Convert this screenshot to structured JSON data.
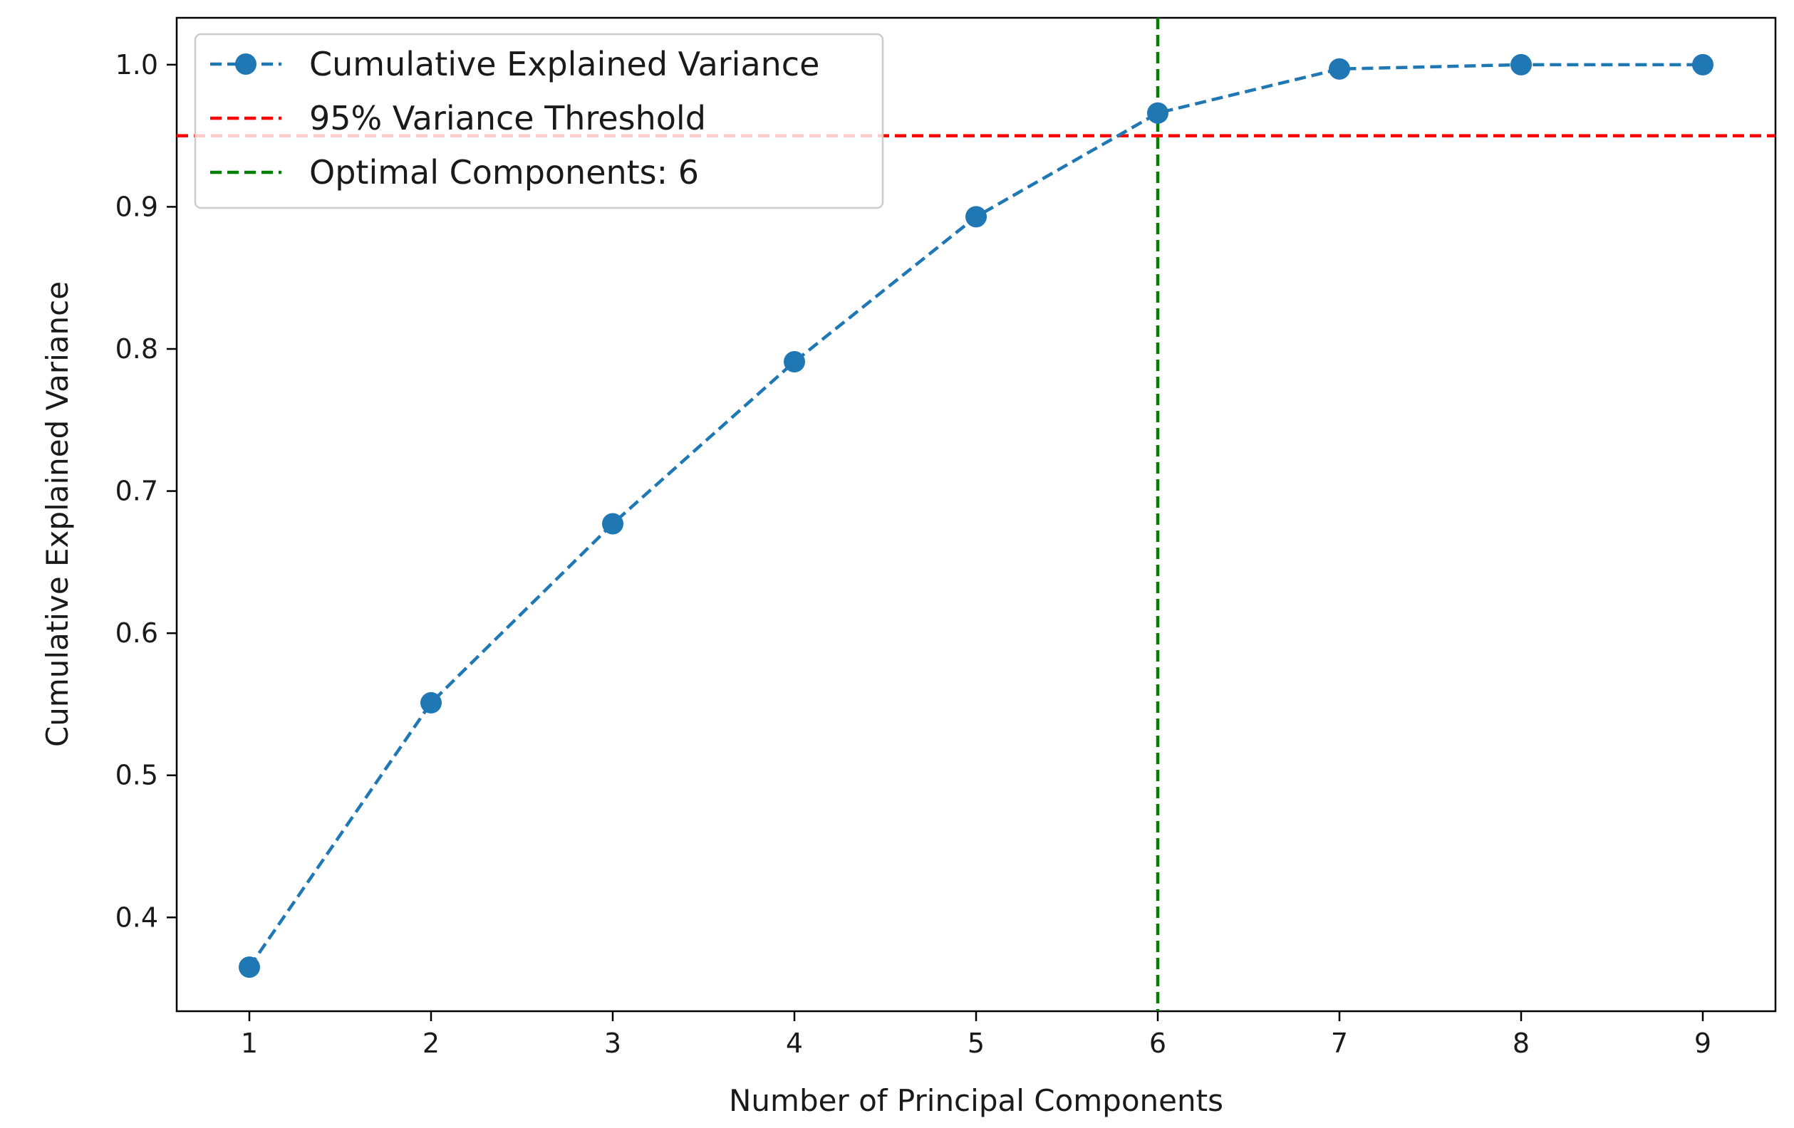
{
  "chart_data": {
    "type": "line",
    "title": "",
    "xlabel": "Number of Principal Components",
    "ylabel": "Cumulative Explained Variance",
    "x": [
      1,
      2,
      3,
      4,
      5,
      6,
      7,
      8,
      9
    ],
    "xticks": [
      "1",
      "2",
      "3",
      "4",
      "5",
      "6",
      "7",
      "8",
      "9"
    ],
    "yticks": [
      "0.4",
      "0.5",
      "0.6",
      "0.7",
      "0.8",
      "0.9",
      "1.0"
    ],
    "ytick_values": [
      0.4,
      0.5,
      0.6,
      0.7,
      0.8,
      0.9,
      1.0
    ],
    "xlim": [
      0.6,
      9.4
    ],
    "ylim": [
      0.334,
      1.033
    ],
    "grid": false,
    "legend_position": "top-left",
    "series": [
      {
        "name": "Cumulative Explained Variance",
        "values": [
          0.365,
          0.551,
          0.677,
          0.791,
          0.893,
          0.966,
          0.997,
          1.0,
          1.0
        ],
        "color": "#1f77b4",
        "style": "dashed-with-markers"
      }
    ],
    "reference_lines": [
      {
        "orientation": "horizontal",
        "value": 0.95,
        "name": "95% Variance Threshold",
        "color": "#ff0000"
      },
      {
        "orientation": "vertical",
        "value": 6,
        "name": "Optimal Components: 6",
        "color": "#008000"
      }
    ]
  }
}
